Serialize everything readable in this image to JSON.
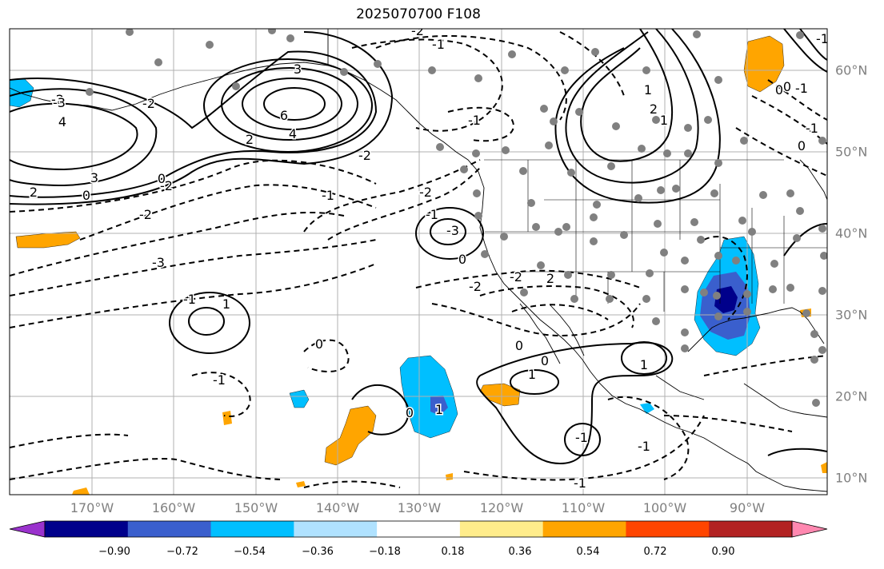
{
  "title": "2025070700 F108",
  "map": {
    "lon_labels": [
      "170°W",
      "160°W",
      "150°W",
      "140°W",
      "130°W",
      "120°W",
      "110°W",
      "100°W",
      "90°W"
    ],
    "lat_labels": [
      "60°N",
      "50°N",
      "40°N",
      "30°N",
      "20°N",
      "10°N"
    ],
    "contour_labels": [
      "-2",
      "4",
      "3",
      "2",
      "0",
      "6",
      "4",
      "3",
      "2",
      "-2",
      "-2",
      "-3",
      "-1",
      "-2",
      "-1",
      "-2",
      "0",
      "-1",
      "-2",
      "-3",
      "-2",
      "-1",
      "-3",
      "0",
      "-2",
      "2",
      "-2",
      "1",
      "-1",
      "0",
      "1",
      "0",
      "-1",
      "-1",
      "-1",
      "0",
      "-1",
      "0",
      "1",
      "1",
      "0",
      "-1",
      "0",
      "-1",
      "0",
      "1",
      "2",
      "1",
      "-1"
    ]
  },
  "colorbar": {
    "tick_labels": [
      "−0.90",
      "−0.72",
      "−0.54",
      "−0.36",
      "−0.18",
      "0.18",
      "0.36",
      "0.54",
      "0.72",
      "0.90"
    ],
    "colors": [
      "#9a32cd",
      "#00008b",
      "#3a5fcd",
      "#00bfff",
      "#b0e2ff",
      "#ffffff",
      "#ffec8b",
      "#ffa500",
      "#ff4500",
      "#b22222",
      "#ff88b0"
    ]
  }
}
